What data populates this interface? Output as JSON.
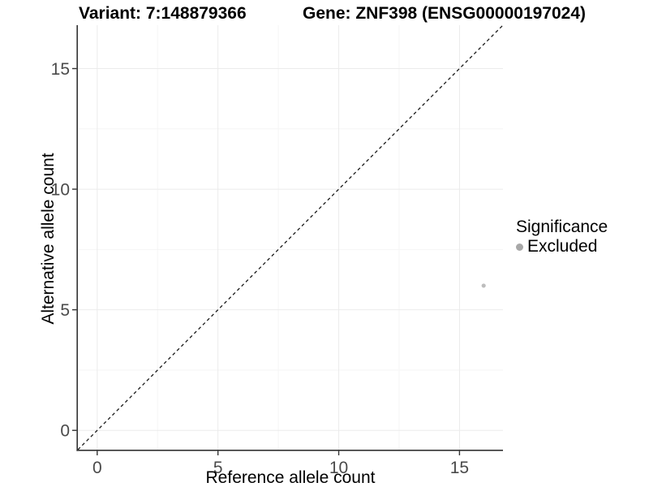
{
  "chart_data": {
    "type": "scatter",
    "title_left": "Variant: 7:148879366",
    "title_right": "Gene: ZNF398 (ENSG00000197024)",
    "xlabel": "Reference allele count",
    "ylabel": "Alternative allele count",
    "xlim": [
      -0.8,
      16.8
    ],
    "ylim": [
      -0.8,
      16.8
    ],
    "x_ticks": [
      0,
      5,
      10,
      15
    ],
    "y_ticks": [
      0,
      5,
      10,
      15
    ],
    "x_minor_gridlines": [
      2.5,
      7.5,
      12.5
    ],
    "y_minor_gridlines": [
      2.5,
      7.5,
      12.5
    ],
    "grid": "major and minor gridlines, light grey on white panel",
    "identity_line": {
      "slope": 1,
      "intercept": 0,
      "style": "dashed",
      "color": "#1a1a1a"
    },
    "series": [
      {
        "name": "Excluded",
        "color": "#bdbdbd",
        "points": [
          {
            "x": 16,
            "y": 6
          }
        ]
      }
    ],
    "legend": {
      "title": "Significance",
      "position": "right",
      "entries": [
        {
          "label": "Excluded",
          "marker": "circle",
          "color": "#a8a8a8"
        }
      ]
    },
    "colors": {
      "grid_major": "#ebebeb",
      "grid_minor": "#f5f5f5",
      "axis_line": "#333333",
      "tick_mark": "#333333",
      "tick_label": "#4a4a4a",
      "title": "#000000",
      "background": "#ffffff"
    }
  }
}
